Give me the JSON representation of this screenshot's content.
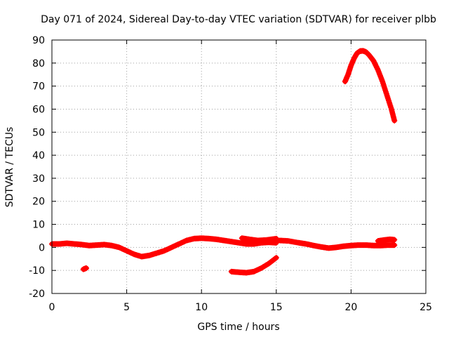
{
  "chart_data": {
    "type": "scatter",
    "title": "Day 071 of 2024, Sidereal Day-to-day VTEC variation (SDTVAR) for receiver plbb",
    "xlabel": "GPS time / hours",
    "ylabel": "SDTVAR / TECUs",
    "xlim": [
      0,
      25
    ],
    "ylim": [
      -20,
      90
    ],
    "xticks": [
      0,
      5,
      10,
      15,
      20,
      25
    ],
    "yticks": [
      -20,
      -10,
      0,
      10,
      20,
      30,
      40,
      50,
      60,
      70,
      80,
      90
    ],
    "grid": true,
    "marker_color": "#ff0000",
    "series": [
      {
        "name": "arc-main-1",
        "x": [
          0,
          0.5,
          1,
          1.5,
          2,
          2.5,
          3,
          3.5,
          4,
          4.5,
          5,
          5.5,
          6,
          6.5,
          7,
          7.5,
          8,
          8.5,
          9,
          9.5,
          10,
          10.5,
          11,
          11.5,
          12,
          12.5,
          13,
          13.5,
          14,
          14.5,
          15
        ],
        "y": [
          1.5,
          1.5,
          1.8,
          1.5,
          1.2,
          0.8,
          1.0,
          1.2,
          0.8,
          0.0,
          -1.5,
          -3.0,
          -4.0,
          -3.5,
          -2.5,
          -1.5,
          0.0,
          1.5,
          3.0,
          3.8,
          4.0,
          3.8,
          3.5,
          3.0,
          2.5,
          2.0,
          1.5,
          1.5,
          2.0,
          2.2,
          2.0
        ]
      },
      {
        "name": "arc-main-2",
        "x": [
          12.7,
          13.2,
          13.8,
          14.3,
          15
        ],
        "y": [
          4.0,
          3.5,
          3.0,
          3.2,
          3.8
        ]
      },
      {
        "name": "arc-main-3",
        "x": [
          15.2,
          15.8,
          16.5,
          17,
          17.5,
          18,
          18.5,
          19,
          19.5,
          20,
          20.5,
          21,
          21.5,
          22,
          22.5,
          22.9
        ],
        "y": [
          3.0,
          2.8,
          2.0,
          1.5,
          0.8,
          0.2,
          -0.3,
          0.0,
          0.5,
          0.8,
          1.0,
          1.0,
          0.8,
          0.8,
          1.0,
          1.0
        ]
      },
      {
        "name": "arc-end",
        "x": [
          21.8,
          22.2,
          22.6,
          22.9
        ],
        "y": [
          2.8,
          3.2,
          3.5,
          3.3
        ]
      },
      {
        "name": "arc-small",
        "x": [
          2.1,
          2.3
        ],
        "y": [
          -9.5,
          -9.0
        ]
      },
      {
        "name": "arc-negative",
        "x": [
          12,
          12.5,
          13,
          13.5,
          14,
          14.5,
          15
        ],
        "y": [
          -10.5,
          -10.8,
          -11.0,
          -10.5,
          -9.0,
          -7.0,
          -4.5
        ]
      },
      {
        "name": "arc-high",
        "x": [
          19.6,
          19.8,
          20,
          20.2,
          20.4,
          20.6,
          20.8,
          21.0,
          21.2,
          21.5,
          21.8,
          22.1,
          22.4,
          22.7,
          22.9
        ],
        "y": [
          72,
          75,
          79,
          82,
          84.3,
          85.2,
          85.3,
          84.8,
          83.5,
          81,
          77,
          72,
          66,
          60,
          55
        ]
      }
    ]
  }
}
